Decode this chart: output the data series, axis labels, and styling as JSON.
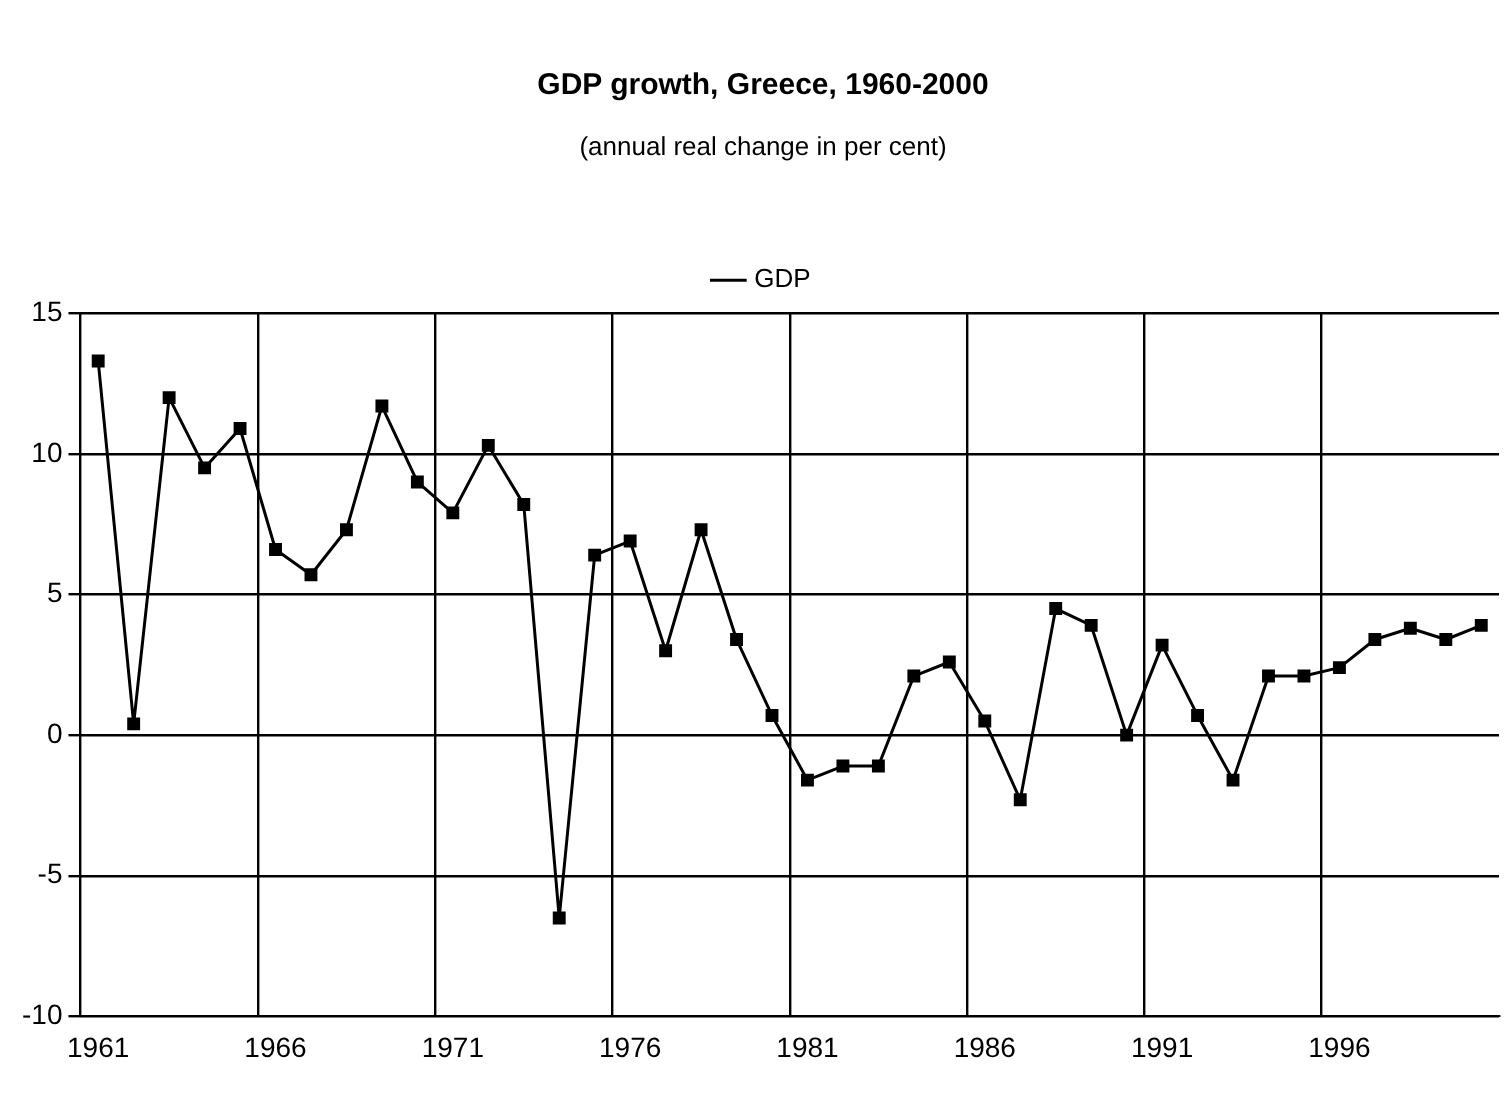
{
  "chart_data": {
    "type": "line",
    "title": "GDP growth, Greece, 1960-2000",
    "subtitle": "(annual real change in per cent)",
    "categories": [
      "1961",
      null,
      null,
      null,
      null,
      "1966",
      null,
      null,
      null,
      null,
      "1971",
      null,
      null,
      null,
      null,
      "1976",
      null,
      null,
      null,
      null,
      "1981",
      null,
      null,
      null,
      null,
      "1986",
      null,
      null,
      null,
      null,
      "1991",
      null,
      null,
      null,
      null,
      "1996",
      null,
      null,
      null,
      null
    ],
    "series": [
      {
        "name": "GDP",
        "color": "#000000",
        "values": [
          13.3,
          0.4,
          12.0,
          9.5,
          10.9,
          6.6,
          5.7,
          7.3,
          11.7,
          9.0,
          7.9,
          10.3,
          8.2,
          -6.5,
          6.4,
          6.9,
          3.0,
          7.3,
          3.4,
          0.7,
          -1.6,
          -1.1,
          -1.1,
          2.1,
          2.6,
          0.5,
          -2.3,
          4.5,
          3.9,
          0.0,
          3.2,
          0.7,
          -1.6,
          2.1,
          2.1,
          2.4,
          3.4,
          3.8,
          3.4,
          3.9
        ]
      }
    ],
    "ylim": [
      -10,
      15
    ],
    "yticks": [
      -10,
      -5,
      0,
      5,
      10,
      15
    ],
    "grid": true,
    "legend": "top",
    "marker": "square",
    "line_style": "solid"
  }
}
